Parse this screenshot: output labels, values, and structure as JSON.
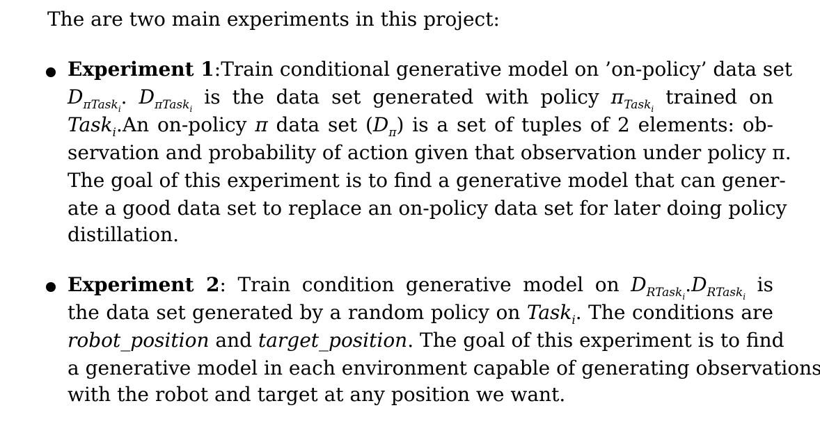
{
  "intro": "The are two main experiments in this project:",
  "experiment1": {
    "title": "Experiment 1",
    "line1_text": ":Train conditional generative model on ’on-policy’ data set",
    "sym_D": "D",
    "sym_pi": "π",
    "sub_task": "Task",
    "sub_i": "i",
    "sep_dot": ".",
    "line2_text_a": " is the data set generated with policy ",
    "line2_text_b": " trained on",
    "sym_task": "Task",
    "line3_text_a": ".An on-policy ",
    "line3_text_b": " data set (",
    "line3_text_c": ") is a set of tuples of 2 elements: ob-",
    "line4": "servation and probability of action given that observation under policy π.",
    "line5": "The goal of this experiment is to find a generative model that can gener-",
    "line6": "ate a good data set to replace an on-policy data set for later doing policy",
    "line7": "distillation."
  },
  "experiment2": {
    "title": "Experiment 2",
    "line1_text": ": Train condition generative model on ",
    "sym_D": "D",
    "sym_R": "R",
    "sub_task": "Task",
    "sub_i": "i",
    "line1_text_b": " is",
    "sep_dot": ".",
    "line2_text": "the data set generated by a random policy on ",
    "line2_text_b": ". The conditions are",
    "sym_task": "Task",
    "var_robot": "robot_position",
    "line3_and": " and ",
    "var_target": "target_position",
    "line3_text": ". The goal of this experiment is to find",
    "line4": "a generative model in each environment capable of generating observations",
    "line5": "with the robot and target at any position we want."
  }
}
